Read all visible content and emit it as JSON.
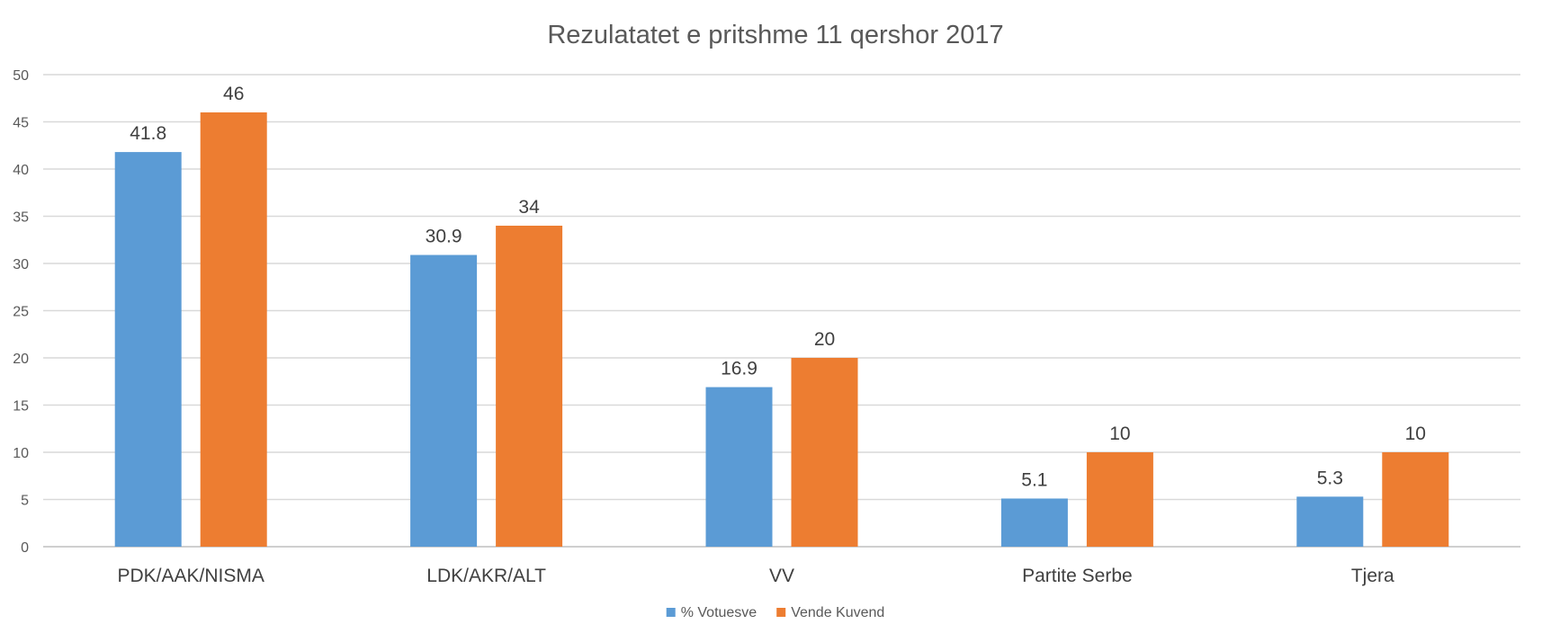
{
  "chart_data": {
    "type": "bar",
    "title": "Rezulatatet e pritshme 11 qershor 2017",
    "categories": [
      "PDK/AAK/NISMA",
      "LDK/AKR/ALT",
      "VV",
      "Partite Serbe",
      "Tjera"
    ],
    "series": [
      {
        "name": "% Votuesve",
        "values": [
          41.8,
          30.9,
          16.9,
          5.1,
          5.3
        ],
        "labels": [
          "41.8",
          "30.9",
          "16.9",
          "5.1",
          "5.3"
        ],
        "color": "#5b9bd5"
      },
      {
        "name": "Vende Kuvend",
        "values": [
          46,
          34,
          20,
          10,
          10
        ],
        "labels": [
          "46",
          "34",
          "20",
          "10",
          "10"
        ],
        "color": "#ed7d31"
      }
    ],
    "ylim": [
      0,
      50
    ],
    "yticks": [
      "0",
      "5",
      "10",
      "15",
      "20",
      "25",
      "30",
      "35",
      "40",
      "45",
      "50"
    ],
    "grid": true,
    "legend": "bottom"
  }
}
